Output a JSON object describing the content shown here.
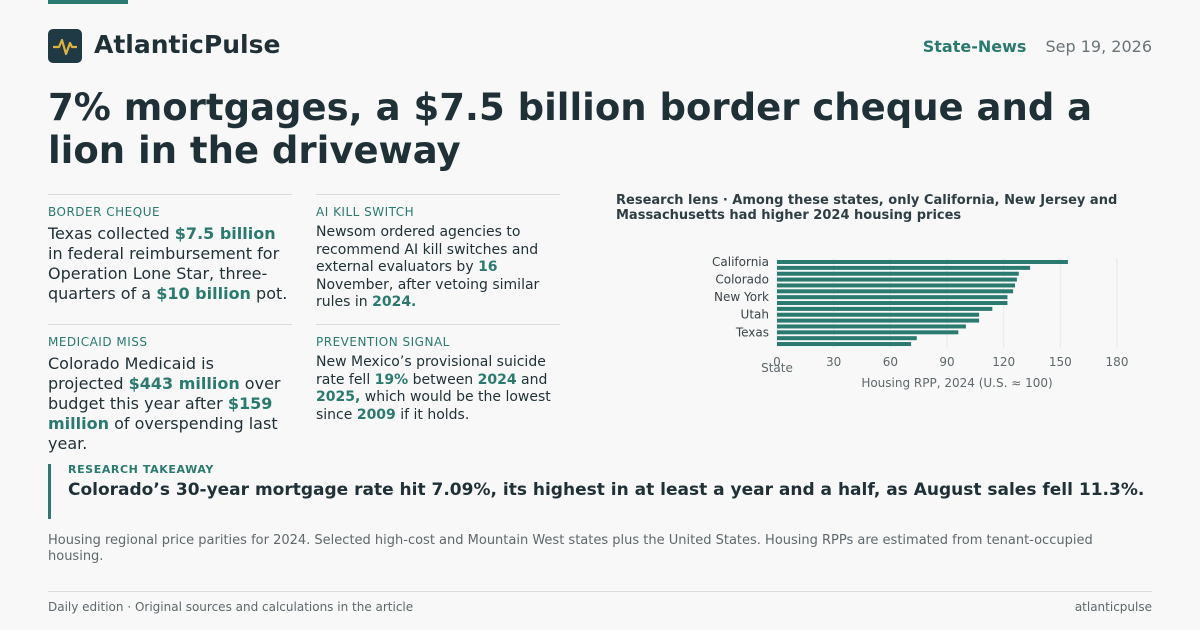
{
  "header": {
    "brand": "AtlanticPulse",
    "section": "State-News",
    "date": "Sep 19, 2026"
  },
  "headline": "7% mortgages, a $7.5 billion border cheque and a lion in the driveway",
  "briefs": [
    {
      "label": "BORDER CHEQUE",
      "body": [
        "Texas collected ",
        "$7.5 billion",
        " in federal reimbursement for Operation Lone Star, three-quarters of a ",
        "$10 billion",
        " pot."
      ]
    },
    {
      "label": "AI KILL SWITCH",
      "body": [
        "Newsom ordered agencies to recommend AI kill switches and external evaluators by ",
        "16",
        " November, after vetoing similar rules in ",
        "2024."
      ]
    },
    {
      "label": "MEDICAID MISS",
      "body": [
        "Colorado Medicaid is projected ",
        "$443 million",
        " over budget this year after ",
        "$159 million",
        " of overspending last year."
      ]
    },
    {
      "label": "PREVENTION SIGNAL",
      "body": [
        "New Mexico’s provisional suicide rate fell ",
        "19%",
        " between ",
        "2024",
        " and ",
        "2025,",
        " which would be the lowest since ",
        "2009",
        " if it holds."
      ]
    }
  ],
  "chart_data": {
    "type": "hbar",
    "title": "Research lens · Among these states, only California, New Jersey and Massachusetts had higher 2024 housing prices",
    "categories": [
      "California",
      null,
      null,
      "Colorado",
      null,
      null,
      "New York",
      null,
      null,
      "Utah",
      null,
      null,
      "Texas",
      null,
      null
    ],
    "values": [
      154,
      134,
      128,
      127,
      126,
      125,
      122,
      122,
      114,
      107,
      107,
      100,
      96,
      74,
      71
    ],
    "color": "#2a7a6f",
    "xlim": [
      0,
      180
    ],
    "xticks": [
      0,
      30,
      60,
      90,
      120,
      150,
      180
    ],
    "grid": true,
    "x_label": "Housing RPP, 2024 (U.S. ≈ 100)",
    "y_label": "State"
  },
  "takeaway": {
    "label": "RESEARCH TAKEAWAY",
    "text": "Colorado’s 30-year mortgage rate hit 7.09%, its highest in at least a year and a half, as August sales fell 11.3%."
  },
  "caption": "Housing regional price parities for 2024. Selected high-cost and Mountain West states plus the United States. Housing RPPs are estimated from tenant-occupied housing.",
  "footer": {
    "left": "Daily edition · Original sources and calculations in the article",
    "right": "atlanticpulse"
  }
}
